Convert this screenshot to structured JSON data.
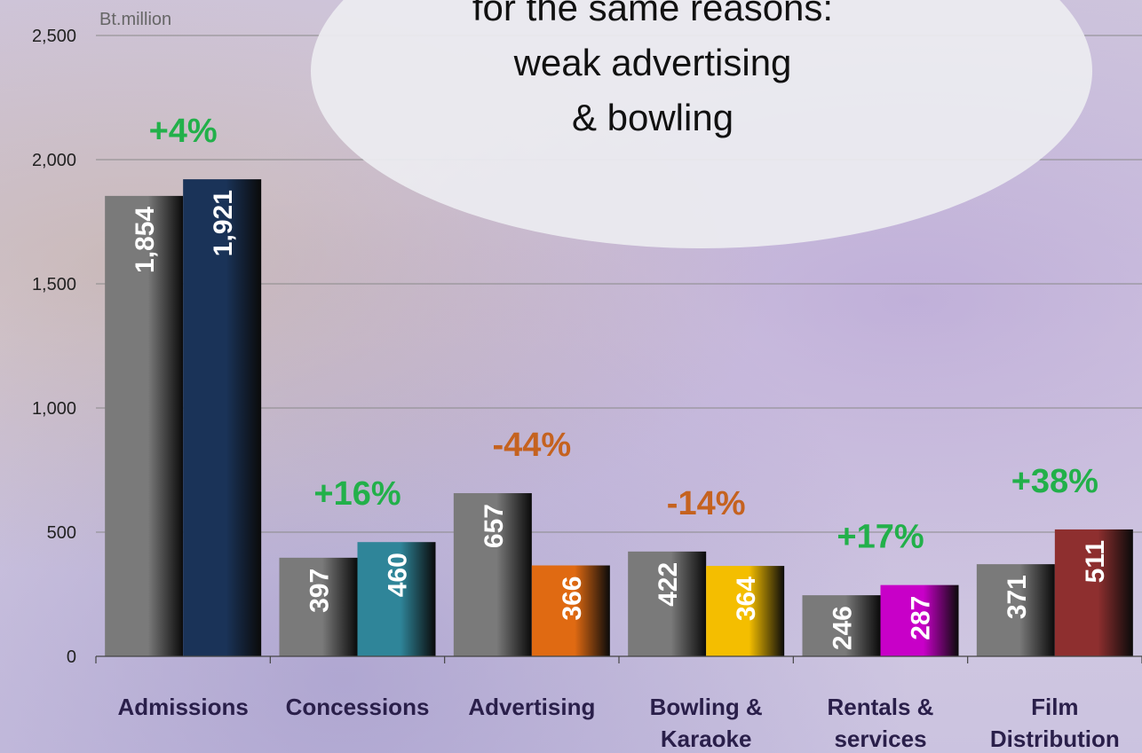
{
  "callout": {
    "lines": [
      "for the same reasons:",
      "weak advertising",
      "& bowling"
    ]
  },
  "colors": {
    "prior": "#7a7a7a",
    "series": [
      "#1a3358",
      "#2f8599",
      "#e06a12",
      "#f4be00",
      "#c800c8",
      "#8e2f2f"
    ],
    "increase": "#22b04a",
    "decrease": "#c5621f",
    "category_text": "#2a1f4a"
  },
  "chart_data": {
    "type": "bar",
    "ylabel": "Bt.million",
    "ylim": [
      0,
      2500
    ],
    "yticks": [
      0,
      500,
      1000,
      1500,
      2000,
      2500
    ],
    "ytick_labels": [
      "0",
      "500",
      "1,000",
      "1,500",
      "2,000",
      "2,500"
    ],
    "grid": true,
    "legend": "none",
    "categories": [
      [
        "Admissions"
      ],
      [
        "Concessions"
      ],
      [
        "Advertising"
      ],
      [
        "Bowling &",
        "Karaoke"
      ],
      [
        "Rentals &",
        "services"
      ],
      [
        "Film",
        "Distribution"
      ]
    ],
    "series": [
      {
        "values": [
          1854,
          397,
          657,
          422,
          246,
          371
        ],
        "labels": [
          "1,854",
          "397",
          "657",
          "422",
          "246",
          "371"
        ]
      },
      {
        "values": [
          1921,
          460,
          366,
          364,
          287,
          511
        ],
        "labels": [
          "1,921",
          "460",
          "366",
          "364",
          "287",
          "511"
        ]
      }
    ],
    "annotations": [
      "+4%",
      "+16%",
      "-44%",
      "-14%",
      "+17%",
      "+38%"
    ],
    "annotation_direction": [
      "up",
      "up",
      "down",
      "down",
      "up",
      "up"
    ]
  }
}
